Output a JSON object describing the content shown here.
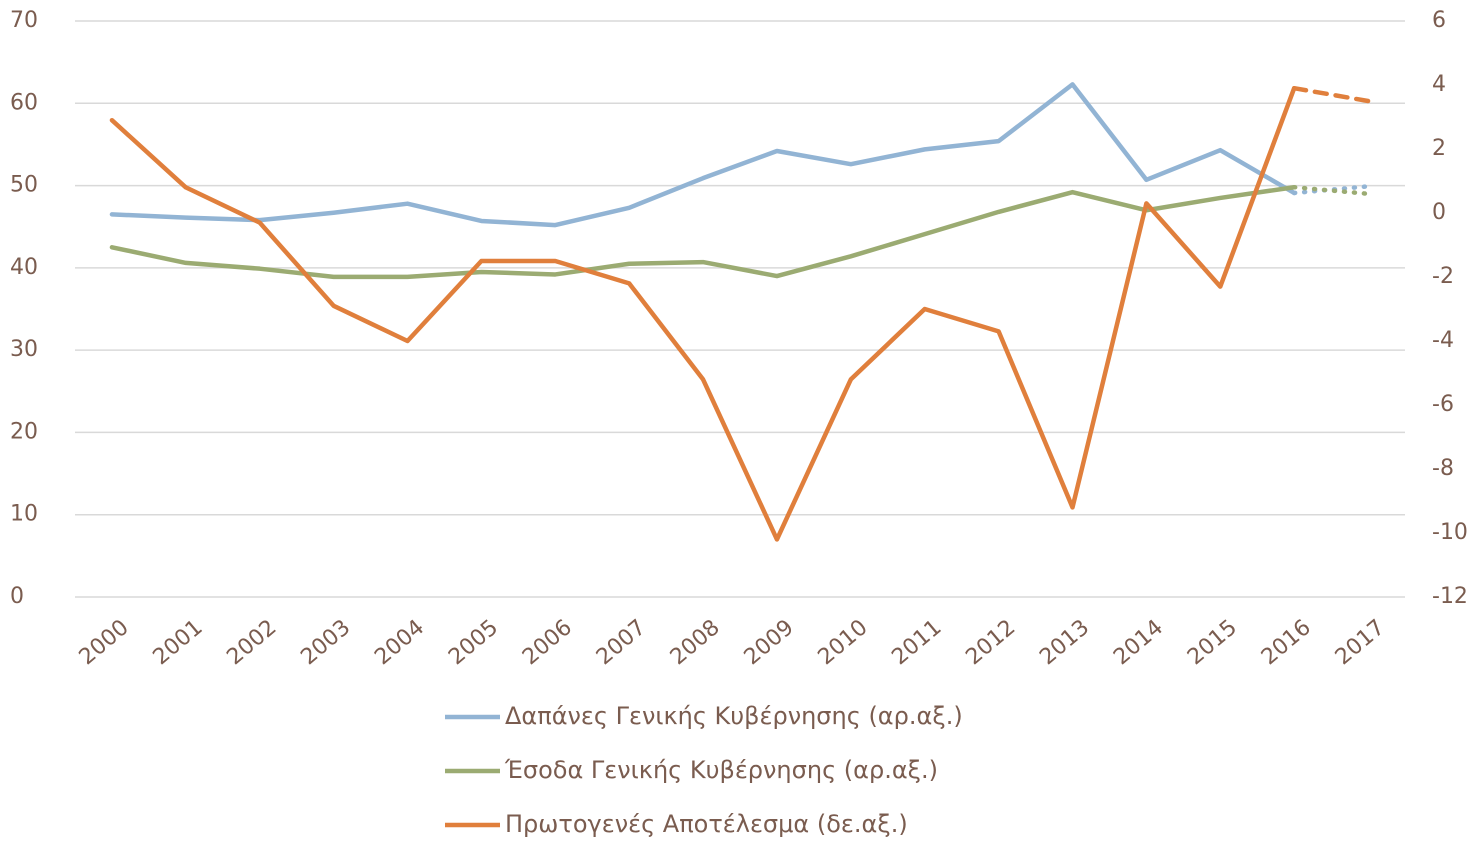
{
  "chart_data": {
    "type": "line",
    "categories": [
      "2000",
      "2001",
      "2002",
      "2003",
      "2004",
      "2005",
      "2006",
      "2007",
      "2008",
      "2009",
      "2010",
      "2011",
      "2012",
      "2013",
      "2014",
      "2015",
      "2016",
      "2017"
    ],
    "series": [
      {
        "name": "Δαπάνες Γενικής Κυβέρνησης (αρ.αξ.)",
        "color": "#92b4d4",
        "axis": "y",
        "last_segment_style": "dotted",
        "values": [
          46.5,
          46.1,
          45.8,
          46.7,
          47.8,
          45.7,
          45.2,
          47.3,
          50.9,
          54.2,
          52.6,
          54.4,
          55.4,
          62.3,
          50.7,
          54.3,
          49.1,
          49.9
        ]
      },
      {
        "name": "Έσοδα Γενικής Κυβέρνησης (αρ.αξ.)",
        "color": "#9bab72",
        "axis": "y",
        "last_segment_style": "dotted",
        "values": [
          42.5,
          40.6,
          39.9,
          38.9,
          38.9,
          39.5,
          39.2,
          40.5,
          40.7,
          39.0,
          41.4,
          44.1,
          46.8,
          49.2,
          47.0,
          48.5,
          49.8,
          49.0
        ]
      },
      {
        "name": "Πρωτογενές Αποτέλεσμα (δε.αξ.)",
        "color": "#e07f3c",
        "axis": "y2",
        "last_segment_style": "dashed",
        "values": [
          2.9,
          0.8,
          -0.3,
          -2.9,
          -4.0,
          -1.5,
          -1.5,
          -2.2,
          -5.2,
          -10.2,
          -5.2,
          -3.0,
          -3.7,
          -9.2,
          0.3,
          -2.3,
          3.9,
          3.5
        ]
      }
    ],
    "ylim": [
      0,
      70
    ],
    "yticks": [
      0,
      10,
      20,
      30,
      40,
      50,
      60,
      70
    ],
    "y2lim": [
      -12,
      6
    ],
    "y2ticks": [
      -12,
      -10,
      -8,
      -6,
      -4,
      -2,
      0,
      2,
      4,
      6
    ],
    "grid": true,
    "legend": "bottom"
  }
}
